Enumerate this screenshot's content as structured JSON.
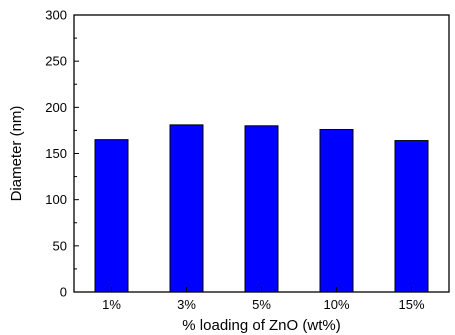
{
  "chart_data": {
    "type": "bar",
    "categories": [
      "1%",
      "3%",
      "5%",
      "10%",
      "15%"
    ],
    "values": [
      165,
      181,
      180,
      176,
      164
    ],
    "title": "",
    "xlabel": "% loading of ZnO (wt%)",
    "ylabel": "Diameter (nm)",
    "ylim": [
      0,
      300
    ],
    "yticks": [
      0,
      50,
      100,
      150,
      200,
      250,
      300
    ],
    "grid": false,
    "bar_color": "#0000ff",
    "bar_edge_color": "#000000"
  }
}
